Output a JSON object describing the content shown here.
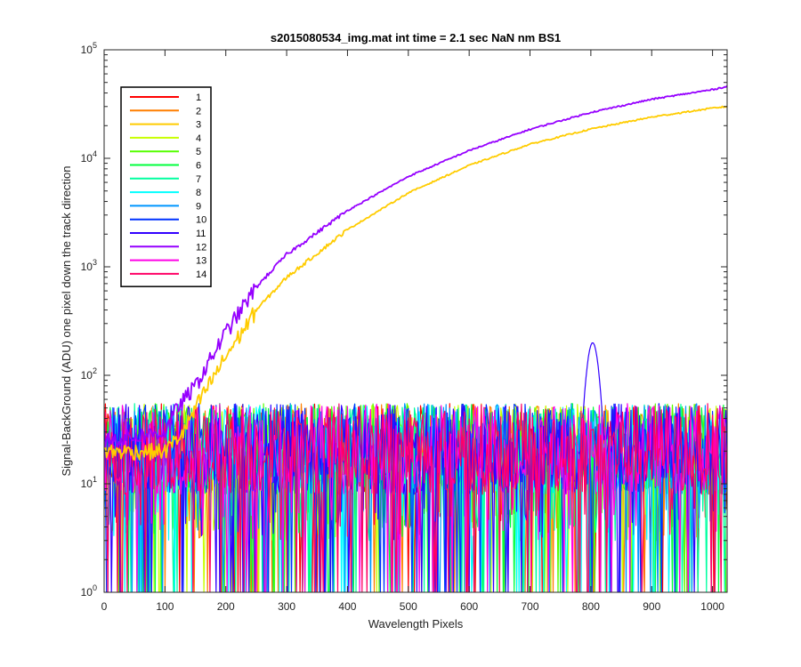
{
  "chart_data": {
    "type": "line",
    "title": "s2015080534_img.mat int time = 2.1 sec  NaN nm BS1",
    "xlabel": "Wavelength Pixels",
    "ylabel": "Signal-BackGround (ADU) one pixel down the track direction",
    "xlim": [
      0,
      1024
    ],
    "ylim": [
      1,
      100000
    ],
    "yscale": "log",
    "grid": false,
    "legend_position": "top-left",
    "x_ticks": [
      "0",
      "100",
      "200",
      "300",
      "400",
      "500",
      "600",
      "700",
      "800",
      "900",
      "1000"
    ],
    "y_ticks": [
      {
        "base": "10",
        "exp": "0"
      },
      {
        "base": "10",
        "exp": "1"
      },
      {
        "base": "10",
        "exp": "2"
      },
      {
        "base": "10",
        "exp": "3"
      },
      {
        "base": "10",
        "exp": "4"
      },
      {
        "base": "10",
        "exp": "5"
      }
    ],
    "series": [
      {
        "name": "1",
        "color": "#ff0000",
        "kind": "noise"
      },
      {
        "name": "2",
        "color": "#ff7f00",
        "kind": "noise"
      },
      {
        "name": "3",
        "color": "#ffcc00",
        "kind": "signal",
        "x": [
          0,
          100,
          130,
          150,
          200,
          250,
          300,
          400,
          500,
          600,
          700,
          800,
          900,
          1000,
          1024
        ],
        "y": [
          20,
          20,
          30,
          50,
          150,
          400,
          800,
          2200,
          4800,
          8600,
          13500,
          18600,
          24000,
          29000,
          30000
        ]
      },
      {
        "name": "4",
        "color": "#c8ff00",
        "kind": "noise"
      },
      {
        "name": "5",
        "color": "#55ff00",
        "kind": "noise"
      },
      {
        "name": "6",
        "color": "#00ff3c",
        "kind": "noise"
      },
      {
        "name": "7",
        "color": "#00ffa0",
        "kind": "noise"
      },
      {
        "name": "8",
        "color": "#00ffff",
        "kind": "noise"
      },
      {
        "name": "9",
        "color": "#0096ff",
        "kind": "noise"
      },
      {
        "name": "10",
        "color": "#0032ff",
        "kind": "noise"
      },
      {
        "name": "11",
        "color": "#3200ff",
        "kind": "noise_peak",
        "peak_x": 803,
        "peak_y": 200
      },
      {
        "name": "12",
        "color": "#9600ff",
        "kind": "signal",
        "x": [
          0,
          100,
          120,
          150,
          200,
          250,
          300,
          400,
          500,
          600,
          700,
          800,
          900,
          1000,
          1024
        ],
        "y": [
          25,
          30,
          50,
          80,
          250,
          650,
          1300,
          3300,
          6800,
          11800,
          18500,
          26500,
          35000,
          43000,
          46000
        ]
      },
      {
        "name": "13",
        "color": "#ff00e6",
        "kind": "noise"
      },
      {
        "name": "14",
        "color": "#ff0064",
        "kind": "noise"
      }
    ]
  }
}
